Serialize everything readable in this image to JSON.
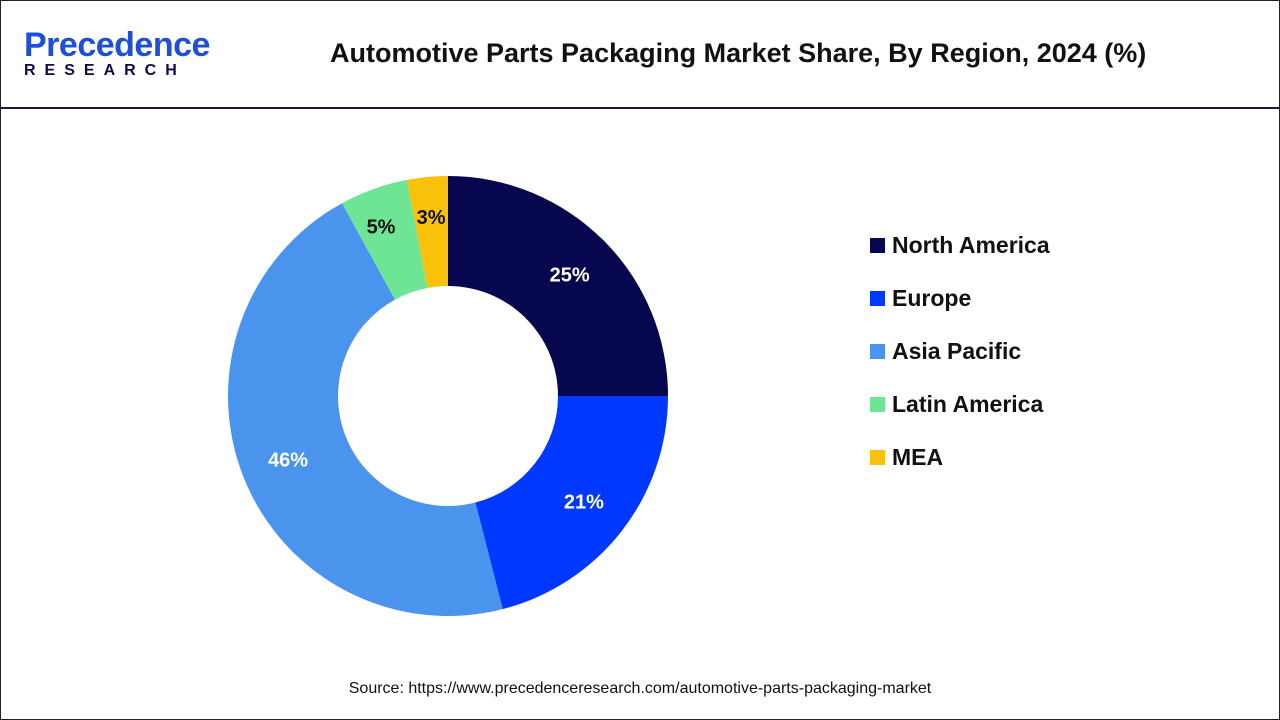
{
  "header": {
    "logo": {
      "line1": "Precedence",
      "line2": "RESEARCH"
    },
    "title": "Automotive Parts Packaging Market Share, By Region, 2024 (%)"
  },
  "chart_data": {
    "type": "pie",
    "variant": "donut",
    "title": "Automotive Parts Packaging Market Share, By Region, 2024 (%)",
    "categories": [
      "North America",
      "Europe",
      "Asia Pacific",
      "Latin America",
      "MEA"
    ],
    "values": [
      25,
      21,
      46,
      5,
      3
    ],
    "labels": [
      "25%",
      "21%",
      "46%",
      "5%",
      "3%"
    ],
    "colors": [
      "#07074f",
      "#0038ff",
      "#4a94ee",
      "#6ee495",
      "#f9c10a"
    ],
    "label_colors": [
      "#ffffff",
      "#ffffff",
      "#ffffff",
      "#111111",
      "#111111"
    ],
    "legend_position": "right",
    "start": "top, clockwise"
  },
  "footer": {
    "source": "Source: https://www.precedenceresearch.com/automotive-parts-packaging-market"
  }
}
